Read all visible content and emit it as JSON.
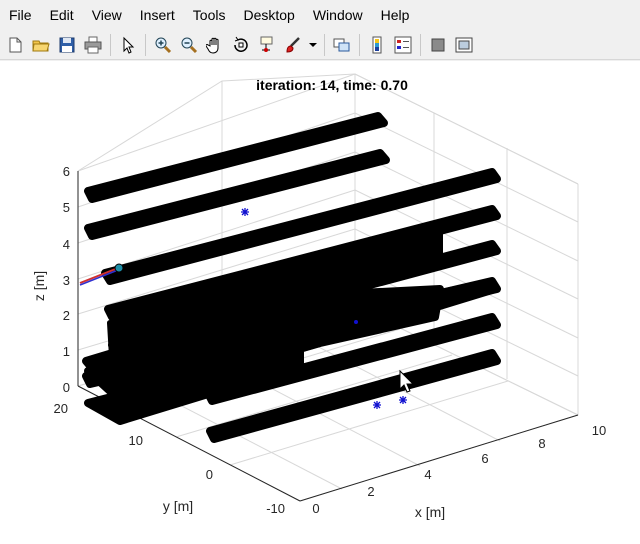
{
  "menu": {
    "items": [
      "File",
      "Edit",
      "View",
      "Insert",
      "Tools",
      "Desktop",
      "Window",
      "Help"
    ]
  },
  "toolbar": {
    "icons": [
      "new-figure-icon",
      "open-file-icon",
      "save-icon",
      "print-icon",
      "pointer-icon",
      "zoom-in-icon",
      "zoom-out-icon",
      "pan-hand-icon",
      "rotate-3d-icon",
      "data-cursor-icon",
      "brush-icon",
      "brush-dropdown-icon",
      "link-plot-icon",
      "colorbar-icon",
      "legend-icon",
      "hide-plot-tools-icon",
      "show-plot-tools-icon"
    ]
  },
  "plot": {
    "title": "iteration: 14, time: 0.70",
    "xlabel": "x [m]",
    "ylabel": "y [m]",
    "zlabel": "z [m]",
    "zticks": [
      "0",
      "1",
      "2",
      "3",
      "4",
      "5",
      "6"
    ],
    "yticks": [
      "20",
      "10",
      "0",
      "-10"
    ],
    "xticks": [
      "0",
      "2",
      "4",
      "6",
      "8",
      "10"
    ]
  },
  "chart_data": {
    "type": "scatter",
    "title": "iteration: 14, time: 0.70",
    "xlabel": "x [m]",
    "ylabel": "y [m]",
    "zlabel": "z [m]",
    "xlim": [
      0,
      10
    ],
    "ylim": [
      -10,
      20
    ],
    "zlim": [
      0,
      6
    ],
    "grid": true
  }
}
